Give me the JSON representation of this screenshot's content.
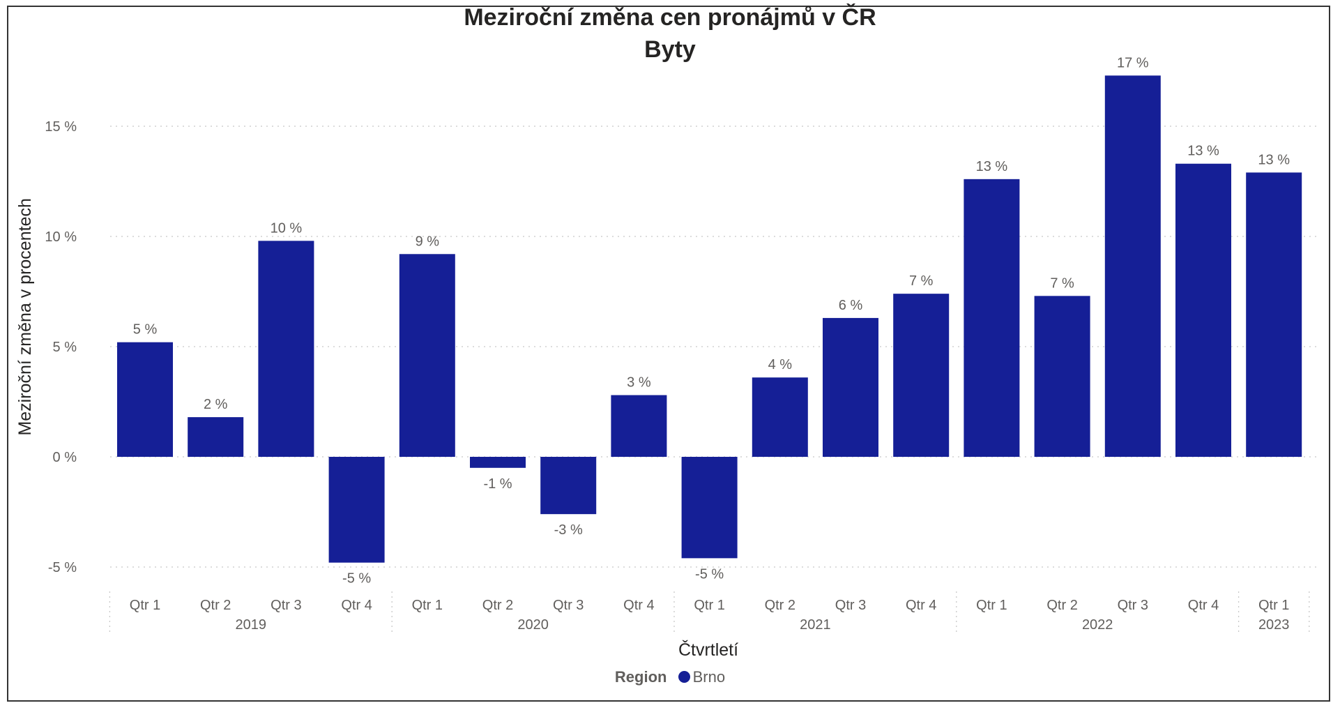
{
  "chart_data": {
    "type": "bar",
    "title": "Meziroční změna cen pronájmů v ČR",
    "subtitle": "Byty",
    "xlabel": "Čtvrtletí",
    "ylabel": "Meziroční změna v procentech",
    "ylim": [
      -6.1,
      18.5
    ],
    "yticks": [
      15,
      10,
      5,
      0,
      -5
    ],
    "ytick_labels": [
      "15 %",
      "10 %",
      "5 %",
      "0 %",
      "-5 %"
    ],
    "grid": true,
    "legend_position": "bottom",
    "categories": [
      "Qtr 1",
      "Qtr 2",
      "Qtr 3",
      "Qtr 4",
      "Qtr 1",
      "Qtr 2",
      "Qtr 3",
      "Qtr 4",
      "Qtr 1",
      "Qtr 2",
      "Qtr 3",
      "Qtr 4",
      "Qtr 1",
      "Qtr 2",
      "Qtr 3",
      "Qtr 4",
      "Qtr 1"
    ],
    "years": [
      {
        "label": "2019",
        "count": 4
      },
      {
        "label": "2020",
        "count": 4
      },
      {
        "label": "2021",
        "count": 4
      },
      {
        "label": "2022",
        "count": 4
      },
      {
        "label": "2023",
        "count": 1
      }
    ],
    "series": [
      {
        "name": "Brno",
        "color": "#151f96",
        "values": [
          5.2,
          1.8,
          9.8,
          -4.8,
          9.2,
          -0.5,
          -2.6,
          2.8,
          -4.6,
          3.6,
          6.3,
          7.4,
          12.6,
          7.3,
          17.3,
          13.3,
          12.9
        ],
        "labels": [
          "5 %",
          "2 %",
          "10 %",
          "-5 %",
          "9 %",
          "-1 %",
          "-3 %",
          "3 %",
          "-5 %",
          "4 %",
          "6 %",
          "7 %",
          "13 %",
          "7 %",
          "17 %",
          "13 %",
          "13 %"
        ]
      }
    ]
  },
  "legend": {
    "title": "Region",
    "items": [
      {
        "label": "Brno",
        "color": "#151f96"
      }
    ]
  }
}
